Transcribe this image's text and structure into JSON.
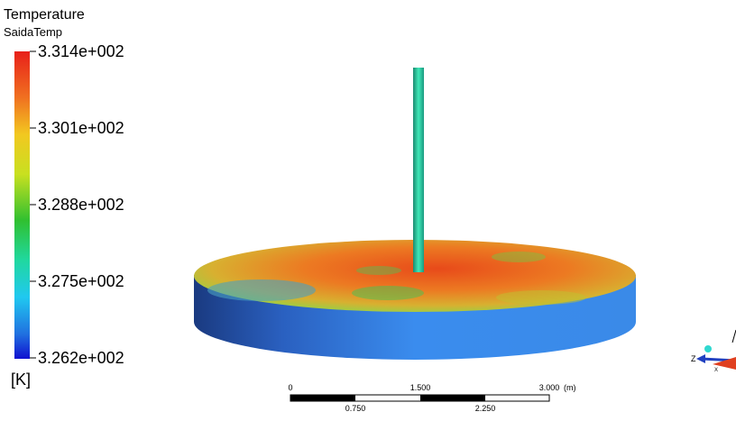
{
  "legend": {
    "title": "Temperature",
    "variable": "SaidaTemp",
    "ticks": [
      "3.314e+002",
      "3.301e+002",
      "3.288e+002",
      "3.275e+002",
      "3.262e+002"
    ],
    "unit": "[K]"
  },
  "scale_bar": {
    "top_labels": [
      "0",
      "1.500",
      "3.000"
    ],
    "unit": "(m)",
    "bottom_labels": [
      "0.750",
      "2.250"
    ]
  },
  "triad": {
    "labels": [
      "Z",
      "X"
    ]
  }
}
